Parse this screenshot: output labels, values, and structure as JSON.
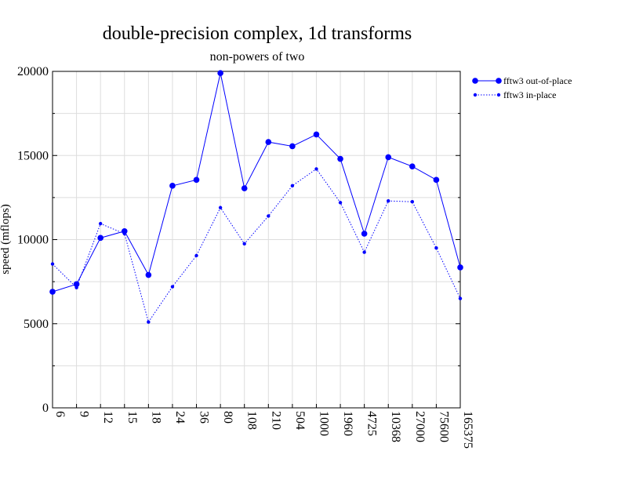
{
  "chart_data": {
    "type": "line",
    "title": "double-precision complex, 1d transforms",
    "subtitle": "non-powers of two",
    "xlabel": "",
    "ylabel": "speed (mflops)",
    "categories": [
      "6",
      "9",
      "12",
      "15",
      "18",
      "24",
      "36",
      "80",
      "108",
      "210",
      "504",
      "1000",
      "1960",
      "4725",
      "10368",
      "27000",
      "75600",
      "165375"
    ],
    "ylim": [
      0,
      20000
    ],
    "yticks": [
      0,
      5000,
      10000,
      15000,
      20000
    ],
    "grid": true,
    "legend_position": "right",
    "series": [
      {
        "name": "fftw3 out-of-place",
        "color": "#0000ff",
        "line_style": "solid",
        "values": [
          6900,
          7350,
          10100,
          10500,
          7900,
          13200,
          13550,
          19900,
          13050,
          15800,
          15550,
          16250,
          14800,
          10350,
          14900,
          14350,
          13550,
          8350
        ]
      },
      {
        "name": "fftw3 in-place",
        "color": "#0000ff",
        "line_style": "dotted",
        "values": [
          8550,
          7150,
          10950,
          10350,
          5100,
          7200,
          9050,
          11900,
          9750,
          11400,
          13200,
          14200,
          12200,
          9250,
          12300,
          12250,
          9500,
          6500
        ]
      }
    ]
  }
}
